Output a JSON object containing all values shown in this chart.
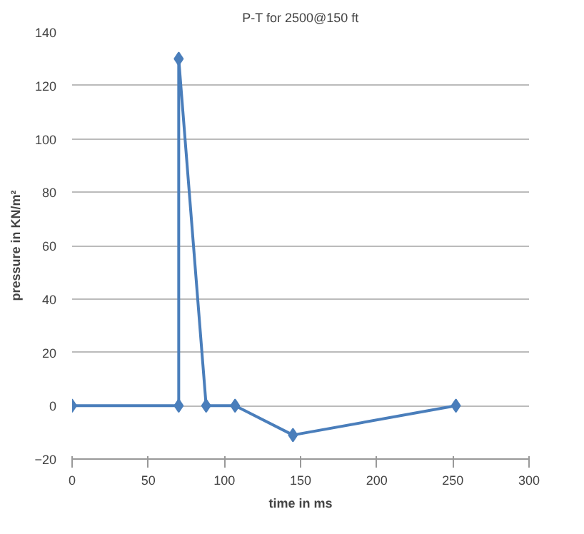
{
  "chart_data": {
    "type": "line",
    "title": "P-T for 2500@150 ft",
    "xlabel": "time in ms",
    "ylabel": "pressure in KN/m²",
    "x": [
      0,
      70,
      70,
      88,
      107,
      145,
      252
    ],
    "series": [
      {
        "color": "#4a7ebb",
        "values": [
          0,
          0,
          130,
          0,
          0,
          -11,
          0
        ]
      }
    ],
    "xlim": [
      0,
      300
    ],
    "xticks": [
      0,
      50,
      100,
      150,
      200,
      250,
      300
    ],
    "ylim": [
      -20,
      140
    ],
    "yticks": [
      -20,
      0,
      20,
      40,
      60,
      80,
      100,
      120,
      140
    ],
    "grid": "y",
    "marker": "diamond",
    "line_style": "solid"
  }
}
